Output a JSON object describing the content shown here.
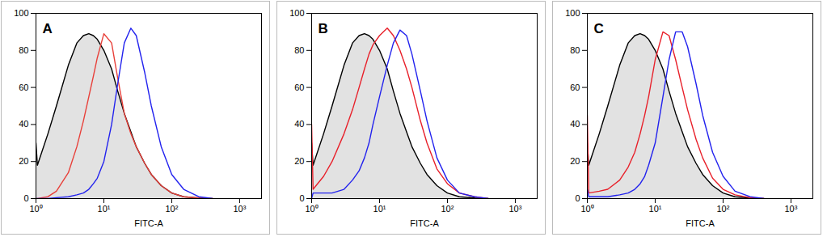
{
  "chart_data": [
    {
      "type": "line",
      "title": "A",
      "x_label": "FITC-A",
      "log": "x",
      "xlim": [
        1,
        2100
      ],
      "ylim": [
        0,
        100
      ],
      "xticks": [
        {
          "value": 1,
          "label": "10⁰"
        },
        {
          "value": 10,
          "label": "10¹"
        },
        {
          "value": 100,
          "label": "10²"
        },
        {
          "value": 1000,
          "label": "10³"
        }
      ],
      "yticks": [
        0,
        20,
        40,
        60,
        80,
        100
      ],
      "x": [
        1,
        1.05,
        1.5,
        2,
        3,
        4,
        5,
        6,
        7,
        8,
        10,
        13,
        16,
        20,
        25,
        30,
        40,
        50,
        70,
        100,
        150,
        250,
        400
      ],
      "series": [
        {
          "type": "area",
          "color": "#000000",
          "values": [
            30,
            18,
            35,
            50,
            72,
            84,
            88,
            89,
            88,
            86,
            80,
            70,
            58,
            46,
            36,
            28,
            19,
            13,
            7,
            3,
            1,
            0.3,
            0
          ]
        },
        {
          "type": "line",
          "color": "#e8403a",
          "values": [
            0,
            0,
            1,
            4,
            14,
            28,
            42,
            55,
            66,
            76,
            89,
            84,
            65,
            46,
            35,
            28,
            19,
            13,
            7,
            3,
            1,
            0.3,
            0
          ]
        },
        {
          "type": "line",
          "color": "#2222ee",
          "values": [
            0,
            0,
            0,
            0.5,
            1,
            2,
            3,
            5,
            8,
            11,
            20,
            40,
            62,
            84,
            92,
            88,
            68,
            50,
            28,
            13,
            5,
            1,
            0
          ]
        }
      ]
    },
    {
      "type": "line",
      "title": "B",
      "x_label": "FITC-A",
      "log": "x",
      "xlim": [
        1,
        2100
      ],
      "ylim": [
        0,
        100
      ],
      "xticks": [
        {
          "value": 1,
          "label": "10⁰"
        },
        {
          "value": 10,
          "label": "10¹"
        },
        {
          "value": 100,
          "label": "10²"
        },
        {
          "value": 1000,
          "label": "10³"
        }
      ],
      "yticks": [
        0,
        20,
        40,
        60,
        80,
        100
      ],
      "x": [
        1,
        1.05,
        1.5,
        2,
        3,
        4,
        5,
        6,
        7,
        8,
        10,
        13,
        16,
        20,
        25,
        30,
        40,
        50,
        70,
        100,
        150,
        250,
        400
      ],
      "series": [
        {
          "type": "area",
          "color": "#000000",
          "values": [
            30,
            18,
            35,
            50,
            72,
            84,
            88,
            89,
            88,
            86,
            80,
            70,
            58,
            46,
            36,
            28,
            19,
            13,
            7,
            3,
            1,
            0.3,
            0
          ]
        },
        {
          "type": "line",
          "color": "#e8202a",
          "values": [
            40,
            5,
            12,
            20,
            35,
            48,
            60,
            70,
            78,
            83,
            88,
            92,
            88,
            80,
            70,
            60,
            42,
            30,
            16,
            8,
            3,
            1,
            0
          ]
        },
        {
          "type": "line",
          "color": "#2222ee",
          "values": [
            0,
            3,
            3,
            3,
            5,
            10,
            15,
            22,
            30,
            40,
            55,
            72,
            84,
            91,
            88,
            78,
            58,
            42,
            22,
            10,
            3,
            1,
            0
          ]
        }
      ]
    },
    {
      "type": "line",
      "title": "C",
      "x_label": "FITC-A",
      "log": "x",
      "xlim": [
        1,
        2100
      ],
      "ylim": [
        0,
        100
      ],
      "xticks": [
        {
          "value": 1,
          "label": "10⁰"
        },
        {
          "value": 10,
          "label": "10¹"
        },
        {
          "value": 100,
          "label": "10²"
        },
        {
          "value": 1000,
          "label": "10³"
        }
      ],
      "yticks": [
        0,
        20,
        40,
        60,
        80,
        100
      ],
      "x": [
        1,
        1.05,
        1.5,
        2,
        3,
        4,
        5,
        6,
        7,
        8,
        10,
        13,
        16,
        20,
        25,
        30,
        40,
        50,
        70,
        100,
        150,
        250,
        400
      ],
      "series": [
        {
          "type": "area",
          "color": "#000000",
          "values": [
            30,
            18,
            35,
            50,
            72,
            84,
            88,
            89,
            88,
            86,
            80,
            70,
            58,
            46,
            36,
            28,
            19,
            13,
            7,
            3,
            1,
            0.3,
            0
          ]
        },
        {
          "type": "line",
          "color": "#e8202a",
          "values": [
            45,
            3,
            4,
            5,
            10,
            17,
            25,
            35,
            45,
            55,
            75,
            90,
            88,
            75,
            60,
            48,
            32,
            22,
            11,
            5,
            2,
            0.5,
            0
          ]
        },
        {
          "type": "line",
          "color": "#2222ee",
          "values": [
            5,
            1,
            1,
            1,
            2,
            3,
            5,
            8,
            12,
            18,
            30,
            55,
            75,
            90,
            90,
            82,
            62,
            45,
            25,
            12,
            4,
            1,
            0
          ]
        }
      ]
    }
  ]
}
